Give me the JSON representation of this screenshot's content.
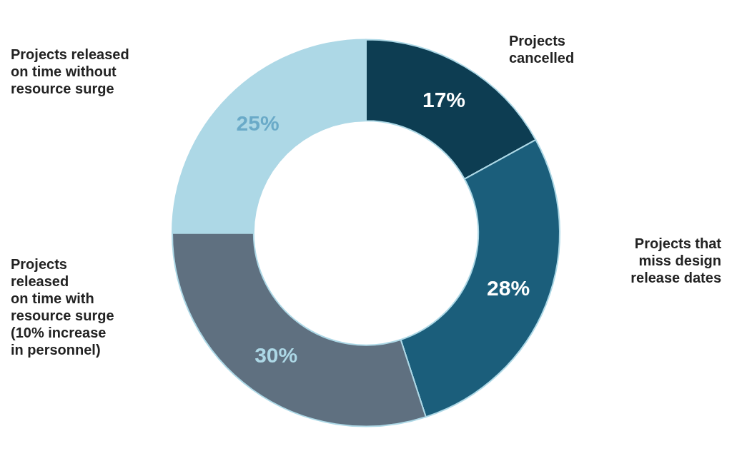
{
  "chart_data": {
    "type": "doughnut",
    "categories": [
      "Projects\ncancelled",
      "Projects that\nmiss design\nrelease dates",
      "Projects\nreleased\non time with\nresource surge\n(10% increase\nin personnel)",
      "Projects released\non time without\nresource surge"
    ],
    "values": [
      17,
      28,
      30,
      25
    ],
    "value_labels": [
      "17%",
      "28%",
      "30%",
      "25%"
    ],
    "colors": [
      "#0d3d52",
      "#1b5e7b",
      "#5f7080",
      "#add8e6"
    ],
    "data_labels": true
  }
}
